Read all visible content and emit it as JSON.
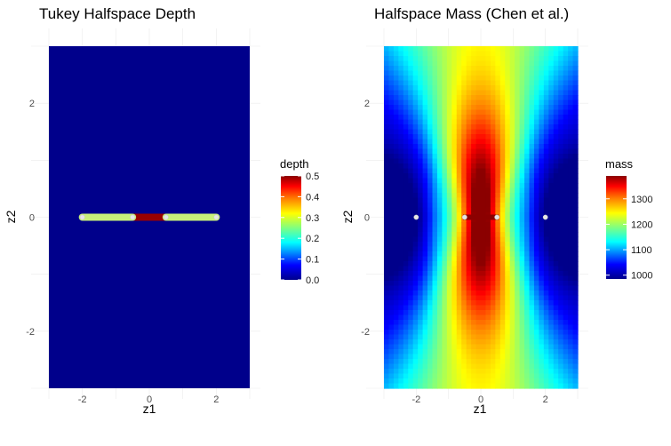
{
  "chart_data": [
    {
      "type": "heatmap",
      "title": "Tukey Halfspace Depth",
      "xlabel": "z1",
      "ylabel": "z2",
      "xlim": [
        -3,
        3
      ],
      "ylim": [
        -3,
        3
      ],
      "x_ticks": [
        "-2",
        "0",
        "2"
      ],
      "y_ticks": [
        "-2",
        "0",
        "2"
      ],
      "grid": true,
      "fill_variable": "depth",
      "fill_range": [
        0,
        0.5
      ],
      "background_value": 0.0,
      "legend": {
        "title": "depth",
        "ticks": [
          "0.0",
          "0.1",
          "0.2",
          "0.3",
          "0.4",
          "0.5"
        ],
        "placement": "right"
      },
      "segments": [
        {
          "x_from": -2,
          "x_to": -0.5,
          "y": 0,
          "value": 0.25
        },
        {
          "x_from": -0.5,
          "x_to": 0.5,
          "y": 0,
          "value": 0.5
        },
        {
          "x_from": 0.5,
          "x_to": 2,
          "y": 0,
          "value": 0.25
        }
      ],
      "points": [
        {
          "x": -2,
          "y": 0
        },
        {
          "x": -0.5,
          "y": 0
        },
        {
          "x": 0.5,
          "y": 0
        },
        {
          "x": 2,
          "y": 0
        }
      ]
    },
    {
      "type": "heatmap",
      "title": "Halfspace Mass (Chen et al.)",
      "xlabel": "z1",
      "ylabel": "z2",
      "xlim": [
        -3,
        3
      ],
      "ylim": [
        -3,
        3
      ],
      "x_ticks": [
        "-2",
        "0",
        "2"
      ],
      "y_ticks": [
        "-2",
        "0",
        "2"
      ],
      "grid": true,
      "fill_variable": "mass",
      "fill_range": [
        985,
        1390
      ],
      "legend": {
        "title": "mass",
        "ticks": [
          "1000",
          "1100",
          "1200",
          "1300"
        ],
        "placement": "right"
      },
      "points": [
        {
          "x": -2,
          "y": 0
        },
        {
          "x": -0.5,
          "y": 0
        },
        {
          "x": 0.5,
          "y": 0
        },
        {
          "x": 2,
          "y": 0
        }
      ]
    }
  ],
  "colorscale": [
    "#00008b",
    "#0000ff",
    "#00ffff",
    "#80ff80",
    "#ffff00",
    "#ff8000",
    "#ff0000",
    "#8b0000"
  ]
}
